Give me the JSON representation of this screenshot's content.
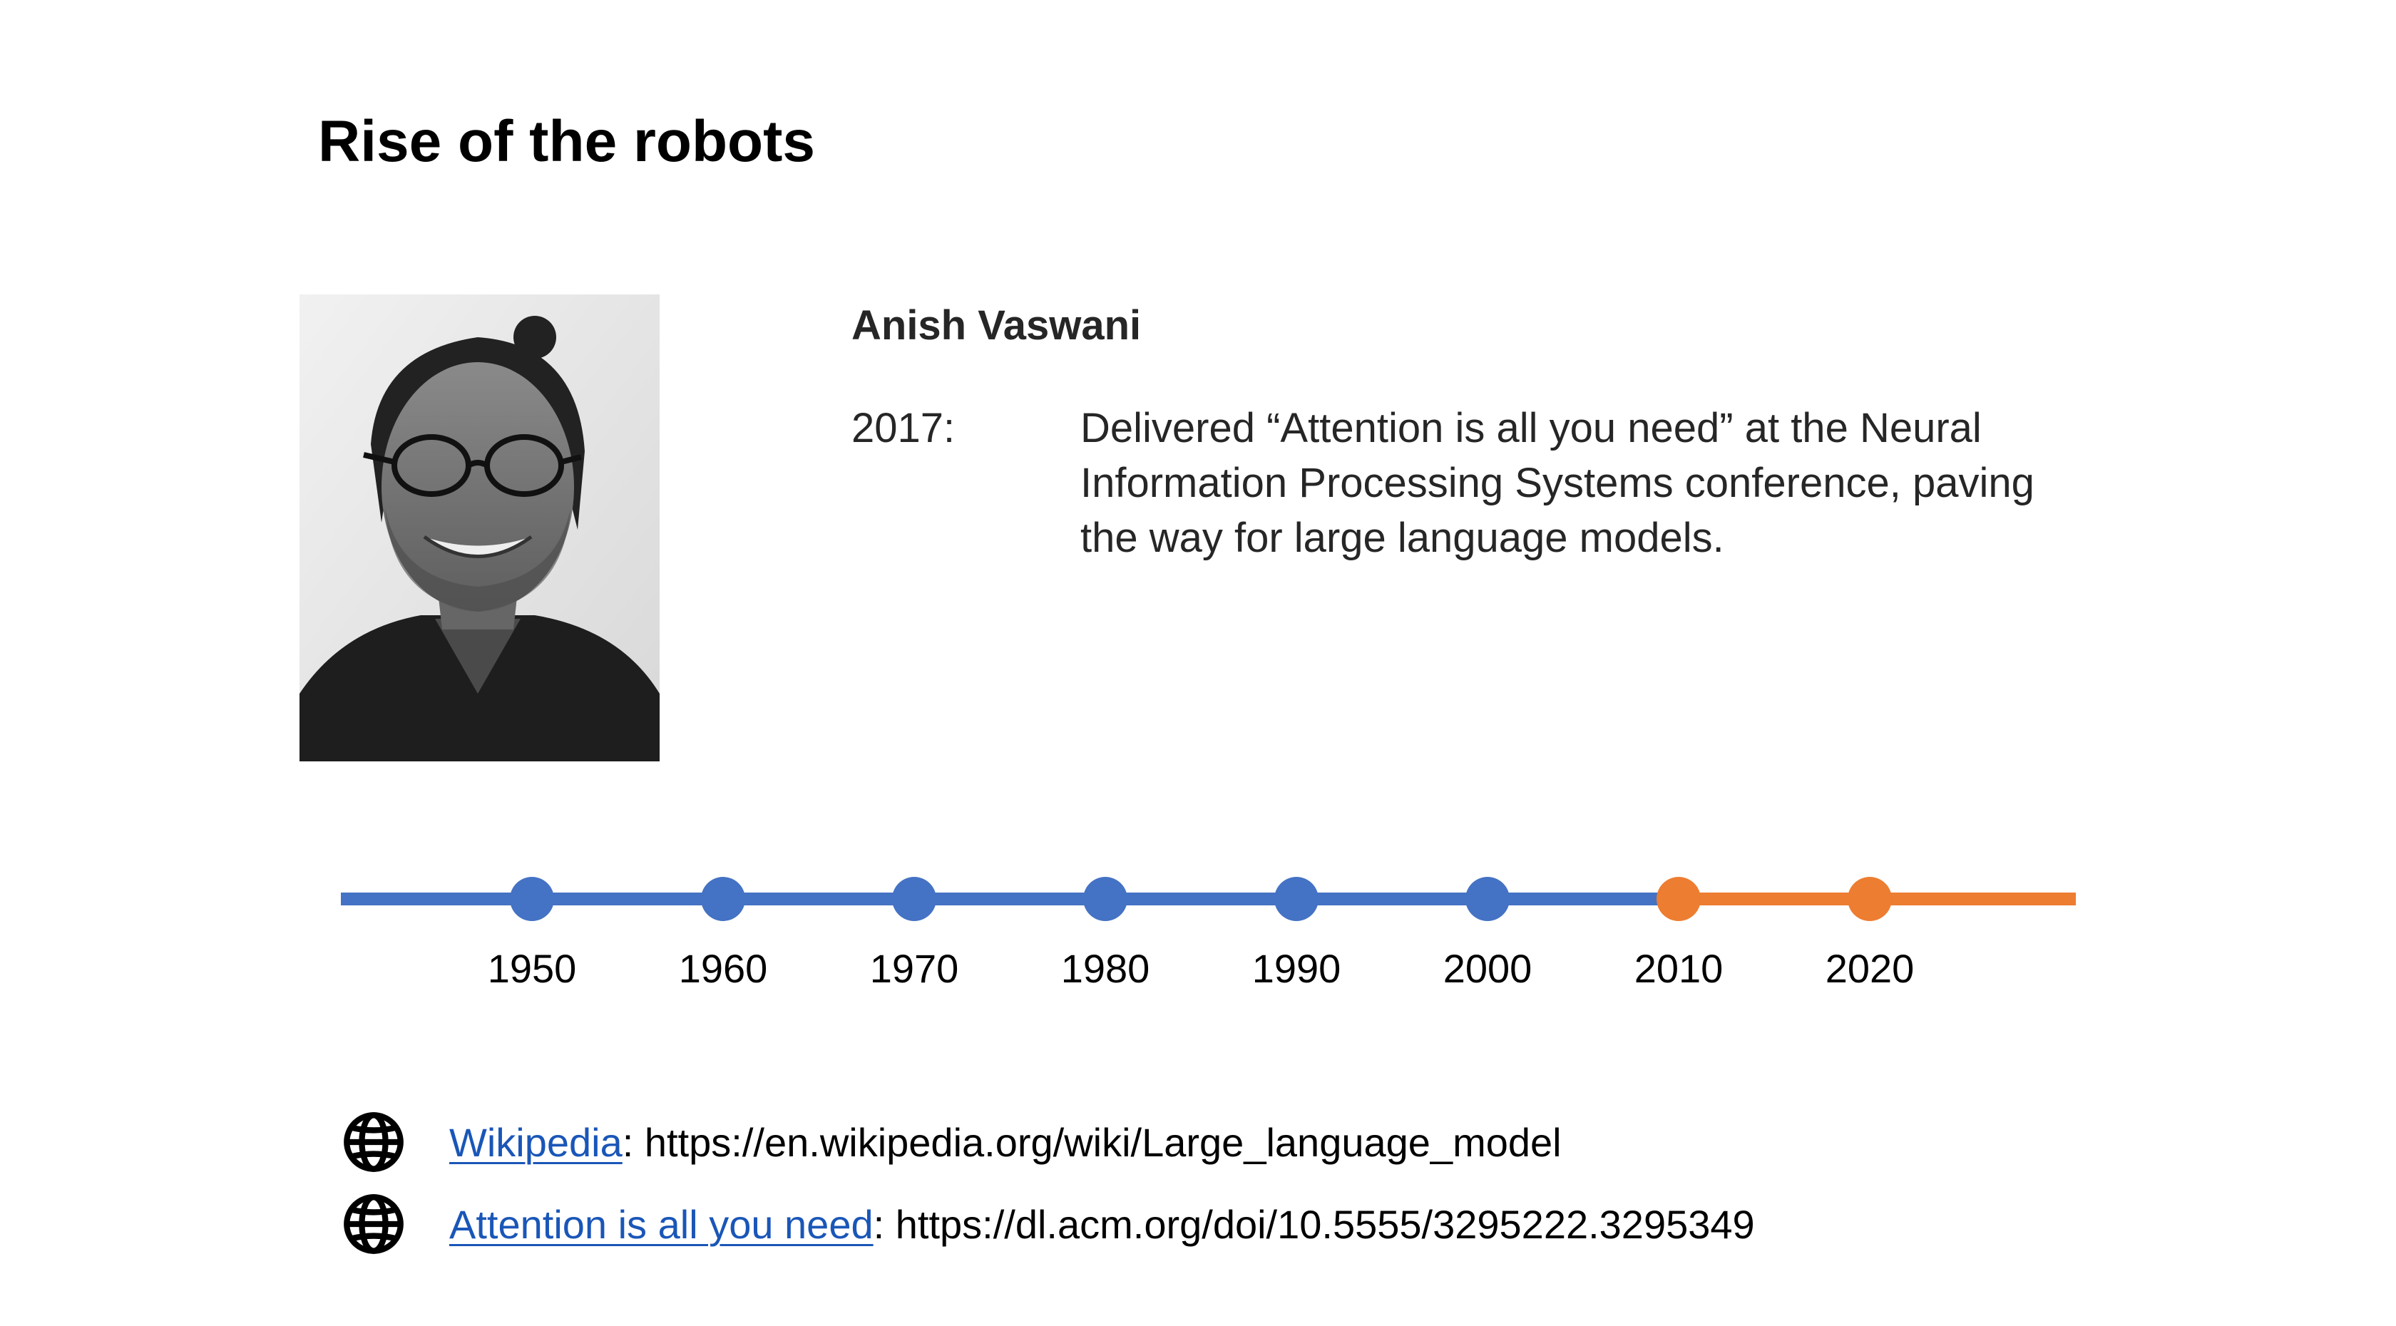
{
  "slide": {
    "title": "Rise of the robots"
  },
  "person": {
    "name": "Anish Vaswani",
    "photo_icon": "portrait-photo",
    "event_year": "2017:",
    "event_text": "Delivered “Attention is all you need” at the Neural Information Processing Systems conference, paving the way for large language models."
  },
  "timeline": {
    "years": [
      "1950",
      "1960",
      "1970",
      "1980",
      "1990",
      "2000",
      "2010",
      "2020"
    ],
    "past_color": "#4472c4",
    "recent_color": "#ed7d31",
    "highlight_from": "2010"
  },
  "references": [
    {
      "icon": "globe-icon",
      "link_text": "Wikipedia",
      "suffix": ": https://en.wikipedia.org/wiki/Large_language_model"
    },
    {
      "icon": "globe-icon",
      "link_text": "Attention is all you need",
      "suffix": ": https://dl.acm.org/doi/10.5555/3295222.3295349"
    }
  ]
}
